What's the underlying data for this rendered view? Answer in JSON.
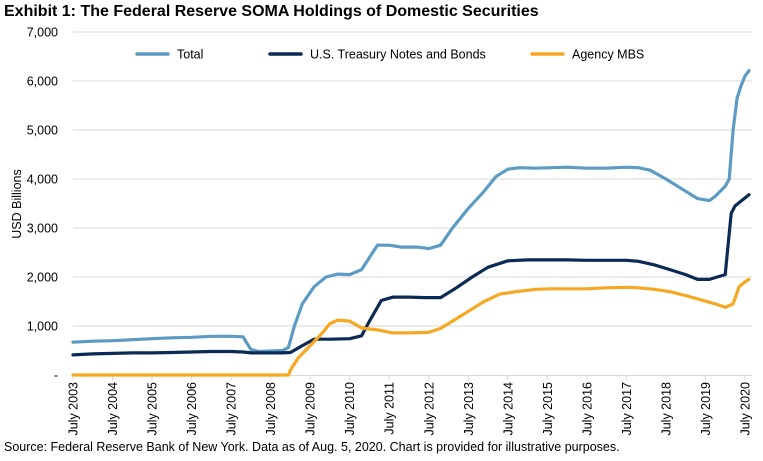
{
  "chart_data": {
    "type": "line",
    "title": "Exhibit 1: The Federal Reserve SOMA Holdings of Domestic Securities",
    "xlabel": "",
    "ylabel": "USD Billions",
    "ylim": [
      0,
      7000
    ],
    "yticks": [
      0,
      1000,
      2000,
      3000,
      4000,
      5000,
      6000,
      7000
    ],
    "ytick_labels": [
      "-",
      "1,000",
      "2,000",
      "3,000",
      "4,000",
      "5,000",
      "6,000",
      "7,000"
    ],
    "xlim": [
      2003.5,
      2020.6
    ],
    "xticks": [
      2003.5,
      2004.5,
      2005.5,
      2006.5,
      2007.5,
      2008.5,
      2009.5,
      2010.5,
      2011.5,
      2012.5,
      2013.5,
      2014.5,
      2015.5,
      2016.5,
      2017.5,
      2018.5,
      2019.5,
      2020.5
    ],
    "xtick_labels": [
      "July 2003",
      "July 2004",
      "July 2005",
      "July 2006",
      "July 2007",
      "July 2008",
      "July 2009",
      "July 2010",
      "July 2011",
      "July 2012",
      "July 2013",
      "July 2014",
      "July 2015",
      "July 2016",
      "July 2017",
      "July 2018",
      "July 2019",
      "July 2020"
    ],
    "grid": true,
    "legend_position": "top-center",
    "series": [
      {
        "name": "Total",
        "color": "#5B9BC4",
        "x": [
          2003.5,
          2004.0,
          2004.5,
          2005.0,
          2005.5,
          2006.0,
          2006.5,
          2007.0,
          2007.5,
          2007.8,
          2008.0,
          2008.2,
          2008.5,
          2008.8,
          2008.95,
          2009.1,
          2009.3,
          2009.6,
          2009.9,
          2010.2,
          2010.5,
          2010.8,
          2011.0,
          2011.2,
          2011.5,
          2011.8,
          2012.2,
          2012.5,
          2012.8,
          2013.1,
          2013.5,
          2013.9,
          2014.2,
          2014.5,
          2014.8,
          2015.2,
          2015.6,
          2016.0,
          2016.5,
          2017.0,
          2017.5,
          2017.8,
          2018.1,
          2018.5,
          2018.9,
          2019.3,
          2019.6,
          2019.75,
          2020.0,
          2020.1,
          2020.2,
          2020.3,
          2020.4,
          2020.5,
          2020.6
        ],
        "values": [
          670,
          690,
          700,
          720,
          740,
          760,
          770,
          790,
          790,
          780,
          520,
          480,
          490,
          500,
          560,
          1000,
          1450,
          1800,
          2000,
          2060,
          2050,
          2150,
          2400,
          2650,
          2650,
          2610,
          2610,
          2580,
          2650,
          3000,
          3400,
          3750,
          4050,
          4200,
          4230,
          4220,
          4230,
          4240,
          4220,
          4220,
          4240,
          4230,
          4180,
          4000,
          3800,
          3600,
          3560,
          3650,
          3850,
          4000,
          5000,
          5650,
          5900,
          6100,
          6210
        ]
      },
      {
        "name": "U.S. Treasury Notes and Bonds",
        "color": "#0B2A55",
        "x": [
          2003.5,
          2004.0,
          2004.5,
          2005.0,
          2005.5,
          2006.0,
          2006.5,
          2007.0,
          2007.5,
          2007.8,
          2008.0,
          2008.5,
          2008.8,
          2009.0,
          2009.3,
          2009.6,
          2010.0,
          2010.5,
          2010.8,
          2011.0,
          2011.3,
          2011.6,
          2012.0,
          2012.4,
          2012.8,
          2013.2,
          2013.6,
          2014.0,
          2014.5,
          2015.0,
          2015.5,
          2016.0,
          2016.5,
          2017.0,
          2017.5,
          2017.8,
          2018.2,
          2018.6,
          2019.0,
          2019.3,
          2019.6,
          2020.0,
          2020.15,
          2020.25,
          2020.4,
          2020.6
        ],
        "values": [
          410,
          430,
          440,
          450,
          450,
          460,
          470,
          480,
          480,
          470,
          450,
          450,
          450,
          460,
          600,
          730,
          730,
          740,
          800,
          1100,
          1520,
          1590,
          1590,
          1580,
          1580,
          1780,
          2000,
          2200,
          2330,
          2350,
          2350,
          2350,
          2340,
          2340,
          2340,
          2320,
          2250,
          2150,
          2050,
          1950,
          1950,
          2050,
          3300,
          3450,
          3550,
          3680
        ]
      },
      {
        "name": "Agency MBS",
        "color": "#F7A823",
        "x": [
          2003.5,
          2004.5,
          2005.5,
          2006.5,
          2007.5,
          2008.5,
          2008.95,
          2009.0,
          2009.2,
          2009.5,
          2009.8,
          2010.0,
          2010.2,
          2010.5,
          2010.8,
          2011.2,
          2011.6,
          2012.0,
          2012.5,
          2012.8,
          2013.1,
          2013.5,
          2013.9,
          2014.3,
          2014.7,
          2015.2,
          2015.6,
          2016.0,
          2016.5,
          2017.0,
          2017.5,
          2017.8,
          2018.2,
          2018.6,
          2019.0,
          2019.4,
          2019.75,
          2020.0,
          2020.2,
          2020.35,
          2020.5,
          2020.6
        ],
        "values": [
          0,
          0,
          0,
          0,
          0,
          0,
          0,
          100,
          350,
          600,
          850,
          1050,
          1120,
          1100,
          960,
          920,
          860,
          860,
          870,
          950,
          1100,
          1300,
          1500,
          1650,
          1700,
          1750,
          1760,
          1760,
          1760,
          1780,
          1790,
          1780,
          1750,
          1700,
          1620,
          1530,
          1450,
          1380,
          1450,
          1800,
          1900,
          1950
        ]
      }
    ],
    "source": "Source: Federal Reserve Bank of New York. Data as of Aug. 5, 2020. Chart is provided for illustrative purposes."
  }
}
